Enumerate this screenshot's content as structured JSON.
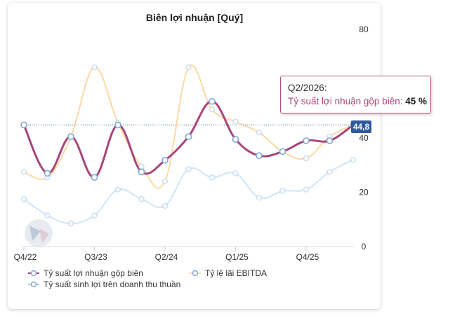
{
  "chart_data": {
    "type": "line",
    "title": "Biên lợi nhuận [Quý]",
    "xlabel": "",
    "ylabel": "",
    "ylim": [
      0,
      80
    ],
    "y_ticks": [
      "0",
      "20",
      "40",
      "80"
    ],
    "x_tick_labels": [
      "Q4/22",
      "Q3/23",
      "Q2/24",
      "Q1/25",
      "Q4/25"
    ],
    "x_tick_indices": [
      0,
      3,
      6,
      9,
      12
    ],
    "n_points": 15,
    "series": [
      {
        "name": "Tỷ suất lợi nhuận gộp biên",
        "color": "#a8457a",
        "values": [
          44.8,
          27,
          40.5,
          25.5,
          44.8,
          27.5,
          31.8,
          40.5,
          53.5,
          39.5,
          33.5,
          35,
          39,
          39,
          44.8
        ]
      },
      {
        "name": "Tỷ lệ lãi EBITDA",
        "color": "#fcd9a6",
        "values": [
          27.5,
          25.5,
          40.5,
          66,
          45.5,
          29.5,
          24,
          66,
          50.5,
          46,
          42,
          35,
          32.5,
          40.5,
          44.8
        ]
      },
      {
        "name": "Tỷ suất sinh lợi trên doanh thu thuần",
        "color": "#cfe6f6",
        "values": [
          17.5,
          11.5,
          8.5,
          11.5,
          21,
          17.5,
          15,
          28.5,
          25.5,
          27,
          18,
          20.5,
          21,
          27.5,
          32
        ]
      }
    ],
    "reference_value": 44.8,
    "legend": "bottom-left",
    "grid": false
  },
  "tooltip": {
    "header": "Q2/2026:",
    "series_label": "Tỷ suất lợi nhuận gộp biên",
    "value": "45 %"
  },
  "last_value_label": "44,8",
  "legend": [
    {
      "label": "Tỷ suất lợi nhuận gộp biên",
      "color": "#a8457a"
    },
    {
      "label": "Tỷ lệ lãi EBITDA",
      "color": "#fcd9a6"
    },
    {
      "label": "Tỷ suất sinh lợi trên doanh thu thuần",
      "color": "#a7cbe9"
    }
  ]
}
